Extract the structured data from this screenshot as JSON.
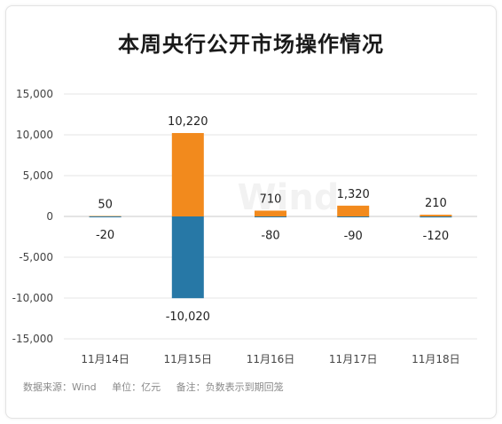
{
  "title": "本周央行公开市场操作情况",
  "footer": {
    "source": "数据来源：Wind",
    "unit": "单位：亿元",
    "note": "备注：负数表示到期回笼"
  },
  "watermark": "Wind",
  "chart_data": {
    "type": "bar",
    "stacked": true,
    "title": "本周央行公开市场操作情况",
    "categories": [
      "11月14日",
      "11月15日",
      "11月16日",
      "11月17日",
      "11月18日"
    ],
    "series": [
      {
        "values": [
          50,
          10220,
          710,
          1320,
          210
        ],
        "color": "#f28a1d"
      },
      {
        "values": [
          -20,
          -10020,
          -80,
          -90,
          -120
        ],
        "color": "#2778a6"
      }
    ],
    "value_labels": {
      "positive": [
        "50",
        "10,220",
        "710",
        "1,320",
        "210"
      ],
      "negative": [
        "-20",
        "-10,020",
        "-80",
        "-90",
        "-120"
      ]
    },
    "yticks": [
      15000,
      10000,
      5000,
      0,
      -5000,
      -10000,
      -15000
    ],
    "ytick_labels": [
      "15,000",
      "10,000",
      "5,000",
      "0",
      "-5,000",
      "-10,000",
      "-15,000"
    ],
    "ylim": [
      -15000,
      15000
    ],
    "grid": true,
    "legend": "none"
  }
}
